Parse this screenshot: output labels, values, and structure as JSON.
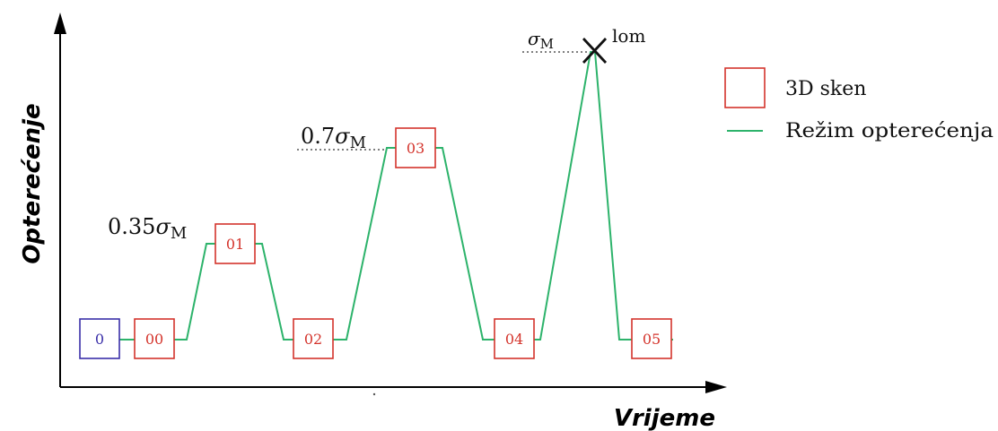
{
  "axes": {
    "y_title": "Opterećenje",
    "x_title": "Vrijeme"
  },
  "annotations": {
    "level1_prefix": "0.35",
    "level2_prefix": "0.7",
    "sigma": "σ",
    "sub_m": "M",
    "failure": "lom"
  },
  "scans": [
    {
      "label": "0",
      "color": "#3a2fa8"
    },
    {
      "label": "00",
      "color": "#d4342c"
    },
    {
      "label": "01",
      "color": "#d4342c"
    },
    {
      "label": "02",
      "color": "#d4342c"
    },
    {
      "label": "03",
      "color": "#d4342c"
    },
    {
      "label": "04",
      "color": "#d4342c"
    },
    {
      "label": "05",
      "color": "#d4342c"
    }
  ],
  "legend": {
    "scan_label": "3D sken",
    "regime_label": "Režim opterećenja"
  },
  "colors": {
    "load_line": "#2db36b",
    "scan_box": "#d4342c",
    "initial_box": "#3a2fa8",
    "axis": "#000000"
  }
}
